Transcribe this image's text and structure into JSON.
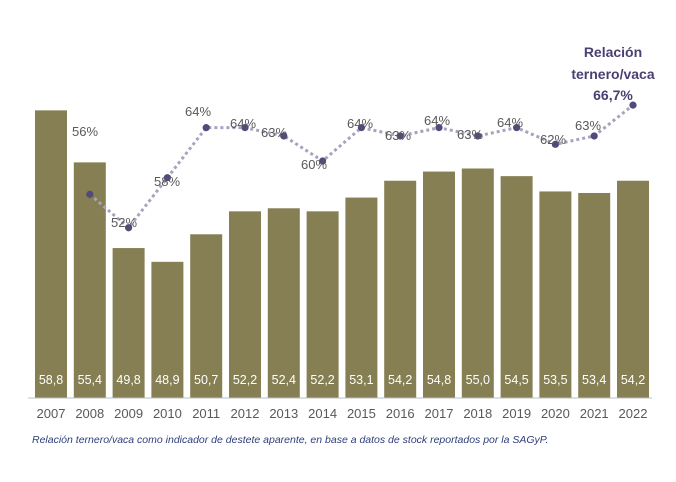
{
  "chart_data": {
    "type": "bar+line",
    "categories": [
      "2007",
      "2008",
      "2009",
      "2010",
      "2011",
      "2012",
      "2013",
      "2014",
      "2015",
      "2016",
      "2017",
      "2018",
      "2019",
      "2020",
      "2021",
      "2022"
    ],
    "series": [
      {
        "kind": "bar",
        "values": [
          58.8,
          55.4,
          49.8,
          48.9,
          50.7,
          52.2,
          52.4,
          52.2,
          53.1,
          54.2,
          54.8,
          55.0,
          54.5,
          53.5,
          53.4,
          54.2
        ],
        "labels": [
          "58,8",
          "55,4",
          "49,8",
          "48,9",
          "50,7",
          "52,2",
          "52,4",
          "52,2",
          "53,1",
          "54,2",
          "54,8",
          "55,0",
          "54,5",
          "53,5",
          "53,4",
          "54,2"
        ],
        "color": "#857f53"
      },
      {
        "kind": "line",
        "values": [
          null,
          56,
          52,
          58,
          64,
          64,
          63,
          60,
          64,
          63,
          64,
          63,
          64,
          62,
          63,
          66.7
        ],
        "labels": [
          "",
          "56%",
          "52%",
          "58%",
          "64%",
          "64%",
          "63%",
          "60%",
          "64%",
          "63%",
          "64%",
          "63%",
          "64%",
          "62%",
          "63%",
          ""
        ],
        "color": "#524a7a"
      }
    ],
    "annotation": {
      "lines": [
        "Relación",
        "ternero/vaca",
        "66,7%"
      ]
    }
  },
  "caption": "Relación ternero/vaca como indicador de destete aparente, en base a datos de stock reportados por la SAGyP."
}
